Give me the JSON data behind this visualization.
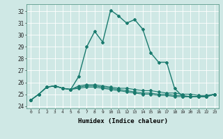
{
  "title": "",
  "xlabel": "Humidex (Indice chaleur)",
  "ylabel": "",
  "background_color": "#cfe8e5",
  "grid_color": "#ffffff",
  "line_color": "#1a7a6e",
  "xlim": [
    -0.5,
    23.5
  ],
  "ylim": [
    23.8,
    32.6
  ],
  "yticks": [
    24,
    25,
    26,
    27,
    28,
    29,
    30,
    31,
    32
  ],
  "xticks": [
    0,
    1,
    2,
    3,
    4,
    5,
    6,
    7,
    8,
    9,
    10,
    11,
    12,
    13,
    14,
    15,
    16,
    17,
    18,
    19,
    20,
    21,
    22,
    23
  ],
  "series": [
    {
      "x": [
        0,
        1,
        2,
        3,
        4,
        5,
        6,
        7,
        8,
        9,
        10,
        11,
        12,
        13,
        14,
        15,
        16,
        17,
        18,
        19,
        20,
        21,
        22,
        23
      ],
      "y": [
        24.5,
        25.0,
        25.6,
        25.7,
        25.5,
        25.4,
        26.5,
        29.0,
        30.3,
        29.4,
        32.1,
        31.6,
        31.0,
        31.3,
        30.5,
        28.5,
        27.7,
        27.7,
        25.5,
        24.8,
        24.8,
        24.8,
        24.8,
        25.0
      ],
      "marker": "D",
      "markersize": 2.0,
      "linewidth": 1.0,
      "linestyle": "-",
      "zorder": 5
    },
    {
      "x": [
        0,
        1,
        2,
        3,
        4,
        5,
        6,
        7,
        8,
        9,
        10,
        11,
        12,
        13,
        14,
        15,
        16,
        17,
        18,
        19,
        20,
        21,
        22,
        23
      ],
      "y": [
        24.5,
        25.0,
        25.6,
        25.7,
        25.5,
        25.4,
        25.7,
        25.8,
        25.8,
        25.7,
        25.6,
        25.5,
        25.5,
        25.4,
        25.3,
        25.3,
        25.2,
        25.1,
        25.1,
        25.0,
        25.0,
        24.9,
        24.9,
        25.0
      ],
      "marker": "D",
      "markersize": 2.0,
      "linewidth": 0.8,
      "linestyle": "-",
      "zorder": 4
    },
    {
      "x": [
        0,
        1,
        2,
        3,
        4,
        5,
        6,
        7,
        8,
        9,
        10,
        11,
        12,
        13,
        14,
        15,
        16,
        17,
        18,
        19,
        20,
        21,
        22,
        23
      ],
      "y": [
        24.5,
        25.0,
        25.6,
        25.7,
        25.5,
        25.4,
        25.6,
        25.7,
        25.7,
        25.6,
        25.5,
        25.4,
        25.3,
        25.2,
        25.1,
        25.1,
        25.0,
        25.0,
        24.9,
        24.9,
        24.8,
        24.8,
        24.8,
        25.0
      ],
      "marker": "D",
      "markersize": 2.0,
      "linewidth": 0.8,
      "linestyle": "-",
      "zorder": 3
    },
    {
      "x": [
        0,
        1,
        2,
        3,
        4,
        5,
        6,
        7,
        8,
        9,
        10,
        11,
        12,
        13,
        14,
        15,
        16,
        17,
        18,
        19,
        20,
        21,
        22,
        23
      ],
      "y": [
        24.5,
        25.0,
        25.6,
        25.7,
        25.5,
        25.4,
        25.5,
        25.6,
        25.6,
        25.5,
        25.4,
        25.3,
        25.2,
        25.1,
        25.0,
        25.0,
        24.9,
        24.9,
        24.8,
        24.8,
        24.8,
        24.8,
        24.8,
        25.0
      ],
      "marker": "D",
      "markersize": 2.0,
      "linewidth": 0.8,
      "linestyle": "-",
      "zorder": 2
    }
  ]
}
